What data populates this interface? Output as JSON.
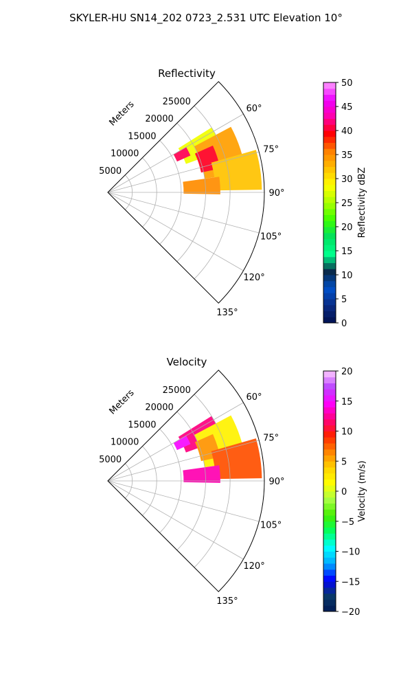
{
  "figure": {
    "title": "SKYLER-HU  SN14_202  0723_2.531 UTC Elevation 10°"
  },
  "chart_data": [
    {
      "type": "heatmap",
      "projection": "polar-sector",
      "title": "Reflectivity",
      "range_axis_label": "Meters",
      "range_ticks": [
        5000,
        10000,
        15000,
        20000,
        25000
      ],
      "azimuth_ticks": [
        60,
        75,
        90,
        105,
        120,
        135
      ],
      "azimuth_tick_labels": [
        "60°",
        "75°",
        "90°",
        "105°",
        "120°",
        "135°"
      ],
      "azimuth_range_deg": [
        45,
        135
      ],
      "range_lim": [
        0,
        32000
      ],
      "grid": true,
      "colorbar": {
        "label": "Reflectivity dBZ",
        "vmin": 0,
        "vmax": 50,
        "ticks": [
          0,
          5,
          10,
          15,
          20,
          25,
          30,
          35,
          40,
          45,
          50
        ],
        "tick_labels": [
          "0",
          "5",
          "10",
          "15",
          "20",
          "25",
          "30",
          "35",
          "40",
          "45",
          "50"
        ]
      },
      "echo_cells": [
        {
          "azimuth_deg": [
            58,
            70
          ],
          "range_m": [
            17000,
            25000
          ],
          "value": 28
        },
        {
          "azimuth_deg": [
            62,
            82
          ],
          "range_m": [
            20000,
            28500
          ],
          "value": 34
        },
        {
          "azimuth_deg": [
            66,
            78
          ],
          "range_m": [
            19500,
            23500
          ],
          "value": 40
        },
        {
          "azimuth_deg": [
            74,
            89
          ],
          "range_m": [
            22000,
            31500
          ],
          "value": 32
        },
        {
          "azimuth_deg": [
            82,
            91
          ],
          "range_m": [
            15500,
            23000
          ],
          "value": 35
        },
        {
          "azimuth_deg": [
            60,
            66
          ],
          "range_m": [
            15500,
            18500
          ],
          "value": 41
        }
      ]
    },
    {
      "type": "heatmap",
      "projection": "polar-sector",
      "title": "Velocity",
      "range_axis_label": "Meters",
      "range_ticks": [
        5000,
        10000,
        15000,
        20000,
        25000
      ],
      "azimuth_ticks": [
        60,
        75,
        90,
        105,
        120,
        135
      ],
      "azimuth_tick_labels": [
        "60°",
        "75°",
        "90°",
        "105°",
        "120°",
        "135°"
      ],
      "azimuth_range_deg": [
        45,
        135
      ],
      "range_lim": [
        0,
        32000
      ],
      "grid": true,
      "colorbar": {
        "label": "Velocity (m/s)",
        "vmin": -20,
        "vmax": 20,
        "ticks": [
          -20,
          -15,
          -10,
          -5,
          0,
          5,
          10,
          15,
          20
        ],
        "tick_labels": [
          "−20",
          "−15",
          "−10",
          "−5",
          "0",
          "5",
          "10",
          "15",
          "20"
        ]
      },
      "echo_cells": [
        {
          "azimuth_deg": [
            58,
            70
          ],
          "range_m": [
            17000,
            25000
          ],
          "value": 12
        },
        {
          "azimuth_deg": [
            62,
            82
          ],
          "range_m": [
            20000,
            28500
          ],
          "value": 2
        },
        {
          "azimuth_deg": [
            66,
            78
          ],
          "range_m": [
            19500,
            23500
          ],
          "value": 6
        },
        {
          "azimuth_deg": [
            74,
            89
          ],
          "range_m": [
            22000,
            31500
          ],
          "value": 8
        },
        {
          "azimuth_deg": [
            82,
            91
          ],
          "range_m": [
            15500,
            23000
          ],
          "value": 13
        },
        {
          "azimuth_deg": [
            60,
            66
          ],
          "range_m": [
            15500,
            18500
          ],
          "value": 15
        }
      ]
    }
  ]
}
